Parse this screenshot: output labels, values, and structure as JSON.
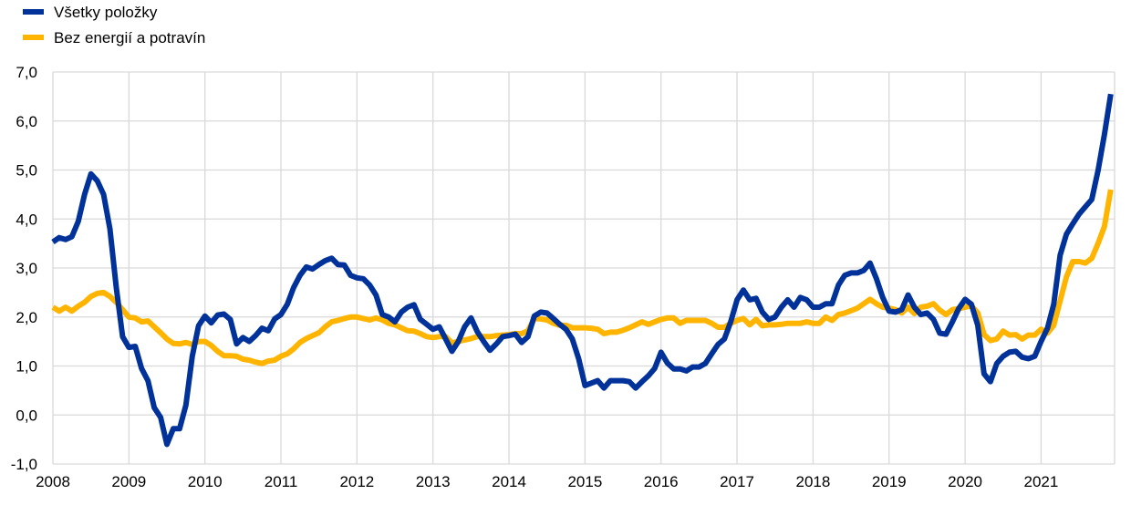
{
  "chart_data": {
    "type": "line",
    "title": "",
    "xlabel": "",
    "ylabel": "",
    "frequency": "monthly",
    "x_start": "2008-01",
    "x_end": "2021-12",
    "x_ticks": [
      "2008",
      "2009",
      "2010",
      "2011",
      "2012",
      "2013",
      "2014",
      "2015",
      "2016",
      "2017",
      "2018",
      "2019",
      "2020",
      "2021"
    ],
    "y_ticks": [
      "-1,0",
      "0,0",
      "1,0",
      "2,0",
      "3,0",
      "4,0",
      "5,0",
      "6,0",
      "7,0"
    ],
    "ylim": [
      -1,
      7
    ],
    "grid": true,
    "legend_position": "top-left",
    "series": [
      {
        "name": "Všetky položky",
        "color": "#003299",
        "values": [
          3.53,
          3.62,
          3.58,
          3.64,
          3.95,
          4.5,
          4.92,
          4.78,
          4.5,
          3.8,
          2.6,
          1.6,
          1.38,
          1.4,
          0.95,
          0.7,
          0.15,
          -0.05,
          -0.6,
          -0.28,
          -0.28,
          0.2,
          1.2,
          1.82,
          2.02,
          1.88,
          2.04,
          2.06,
          1.95,
          1.45,
          1.58,
          1.5,
          1.62,
          1.77,
          1.72,
          1.96,
          2.05,
          2.26,
          2.6,
          2.85,
          3.02,
          2.98,
          3.07,
          3.15,
          3.2,
          3.07,
          3.06,
          2.85,
          2.8,
          2.78,
          2.65,
          2.45,
          2.05,
          2.0,
          1.9,
          2.1,
          2.2,
          2.25,
          1.95,
          1.85,
          1.75,
          1.8,
          1.55,
          1.3,
          1.5,
          1.8,
          1.98,
          1.7,
          1.5,
          1.32,
          1.45,
          1.6,
          1.62,
          1.65,
          1.48,
          1.6,
          2.02,
          2.1,
          2.08,
          1.97,
          1.85,
          1.75,
          1.55,
          1.15,
          0.6,
          0.65,
          0.7,
          0.55,
          0.7,
          0.7,
          0.7,
          0.68,
          0.55,
          0.68,
          0.8,
          0.95,
          1.28,
          1.06,
          0.94,
          0.94,
          0.9,
          0.98,
          0.98,
          1.05,
          1.25,
          1.44,
          1.55,
          1.9,
          2.35,
          2.55,
          2.35,
          2.38,
          2.1,
          1.95,
          2.0,
          2.2,
          2.35,
          2.2,
          2.4,
          2.35,
          2.2,
          2.2,
          2.27,
          2.27,
          2.65,
          2.85,
          2.9,
          2.9,
          2.95,
          3.1,
          2.78,
          2.4,
          2.12,
          2.1,
          2.15,
          2.45,
          2.2,
          2.05,
          2.08,
          1.95,
          1.67,
          1.65,
          1.9,
          2.17,
          2.36,
          2.26,
          1.83,
          0.84,
          0.68,
          1.05,
          1.2,
          1.28,
          1.3,
          1.18,
          1.15,
          1.2,
          1.5,
          1.77,
          2.26,
          3.26,
          3.69,
          3.9,
          4.1,
          4.25,
          4.4,
          4.99,
          5.73,
          6.55
        ]
      },
      {
        "name": "Bez energií a potravín",
        "color": "#FFB400",
        "values": [
          2.2,
          2.12,
          2.2,
          2.12,
          2.22,
          2.3,
          2.42,
          2.48,
          2.5,
          2.42,
          2.3,
          2.15,
          2.0,
          1.98,
          1.9,
          1.92,
          1.8,
          1.68,
          1.55,
          1.46,
          1.45,
          1.48,
          1.44,
          1.5,
          1.5,
          1.42,
          1.3,
          1.21,
          1.21,
          1.2,
          1.14,
          1.12,
          1.08,
          1.05,
          1.1,
          1.12,
          1.2,
          1.25,
          1.35,
          1.48,
          1.56,
          1.62,
          1.68,
          1.8,
          1.9,
          1.93,
          1.97,
          2.0,
          2.0,
          1.97,
          1.94,
          1.98,
          1.94,
          1.87,
          1.84,
          1.78,
          1.72,
          1.71,
          1.66,
          1.6,
          1.58,
          1.6,
          1.6,
          1.47,
          1.5,
          1.53,
          1.56,
          1.6,
          1.6,
          1.6,
          1.62,
          1.63,
          1.64,
          1.66,
          1.66,
          1.72,
          1.97,
          1.96,
          1.94,
          1.87,
          1.83,
          1.83,
          1.78,
          1.78,
          1.78,
          1.77,
          1.75,
          1.66,
          1.69,
          1.69,
          1.73,
          1.78,
          1.84,
          1.9,
          1.85,
          1.9,
          1.95,
          1.98,
          1.98,
          1.87,
          1.93,
          1.93,
          1.93,
          1.93,
          1.87,
          1.79,
          1.79,
          1.87,
          1.93,
          1.97,
          1.84,
          1.95,
          1.82,
          1.84,
          1.84,
          1.85,
          1.87,
          1.87,
          1.87,
          1.9,
          1.87,
          1.87,
          2.0,
          1.93,
          2.05,
          2.08,
          2.13,
          2.18,
          2.27,
          2.36,
          2.27,
          2.2,
          2.18,
          2.15,
          2.08,
          2.2,
          2.07,
          2.2,
          2.22,
          2.27,
          2.14,
          2.05,
          2.15,
          2.17,
          2.2,
          2.23,
          2.08,
          1.64,
          1.52,
          1.55,
          1.71,
          1.63,
          1.64,
          1.55,
          1.63,
          1.63,
          1.75,
          1.67,
          1.83,
          2.33,
          2.82,
          3.13,
          3.13,
          3.1,
          3.2,
          3.5,
          3.85,
          4.6
        ]
      }
    ]
  }
}
